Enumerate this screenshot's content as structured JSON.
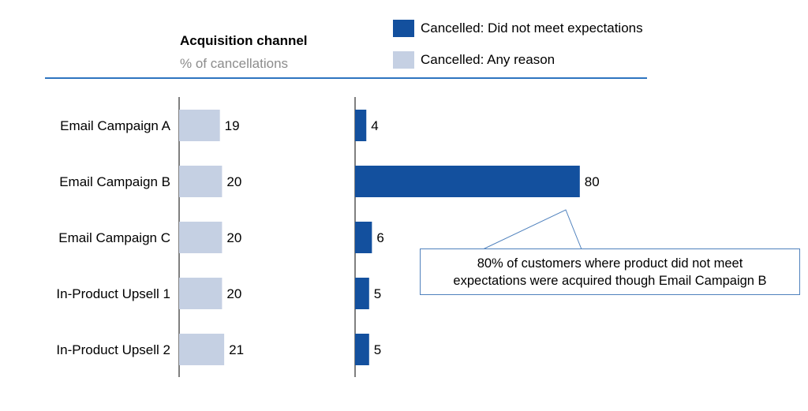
{
  "header": {
    "title": "Acquisition channel",
    "subtitle": "% of cancellations"
  },
  "chart_data": {
    "type": "bar",
    "orientation": "horizontal",
    "categories": [
      "Email Campaign A",
      "Email Campaign B",
      "Email Campaign C",
      "In-Product Upsell 1",
      "In-Product Upsell 2"
    ],
    "series": [
      {
        "name": "Cancelled: Any reason",
        "values": [
          19,
          20,
          20,
          20,
          21
        ],
        "color": "#c5d0e3"
      },
      {
        "name": "Cancelled: Did not meet expectations",
        "values": [
          4,
          80,
          6,
          5,
          5
        ],
        "color": "#13509e"
      }
    ],
    "legend": [
      "Cancelled: Did not meet expectations",
      "Cancelled: Any reason"
    ],
    "annotation": {
      "text_line1": "80% of customers where product did not meet",
      "text_line2": "expectations were acquired though Email Campaign B",
      "target_category": "Email Campaign B"
    },
    "divider_color": "#2e75c0",
    "annotation_border_color": "#4f81bd"
  }
}
